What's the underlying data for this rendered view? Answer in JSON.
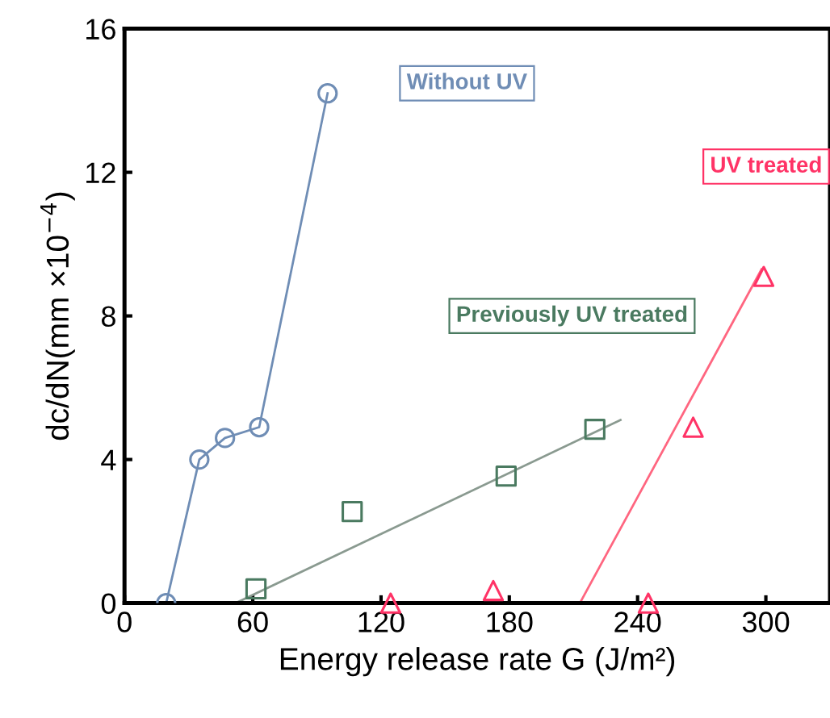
{
  "chart_data": {
    "type": "scatter",
    "xlabel": "Energy release rate G (J/m²)",
    "ylabel": "dc/dN(mm ×10$^{−4}$)",
    "xlim": [
      0,
      330
    ],
    "ylim": [
      0,
      16
    ],
    "xticks": [
      0,
      60,
      120,
      180,
      240,
      300
    ],
    "yticks": [
      0,
      4,
      8,
      12,
      16
    ],
    "grid": false,
    "legend": false,
    "series": [
      {
        "name": "Without UV",
        "type": "line",
        "marker": "circle",
        "color": "#6f8db5",
        "x": [
          19.5,
          35,
          47,
          63,
          95
        ],
        "values": [
          0,
          4.0,
          4.6,
          4.9,
          14.2
        ]
      },
      {
        "name": "Previously UV treated",
        "marker": "square",
        "color": "#4a7a60",
        "x": [
          61.5,
          106.5,
          178.5,
          220
        ],
        "values": [
          0.4,
          2.55,
          3.54,
          4.84
        ]
      },
      {
        "type": "line",
        "marker": "none",
        "color": "#8a9a90",
        "x": [
          52,
          232
        ],
        "values": [
          0,
          5.1
        ]
      },
      {
        "name": "UV treated",
        "marker": "triangle",
        "color": "#ff3366",
        "x": [
          124.5,
          172.5,
          245,
          266,
          299
        ],
        "values": [
          0,
          0.35,
          0,
          4.9,
          9.1
        ]
      },
      {
        "type": "line",
        "marker": "none",
        "color": "#ff6680",
        "x": [
          122,
          213,
          298
        ],
        "values": [
          0,
          0,
          9.3
        ]
      }
    ]
  }
}
